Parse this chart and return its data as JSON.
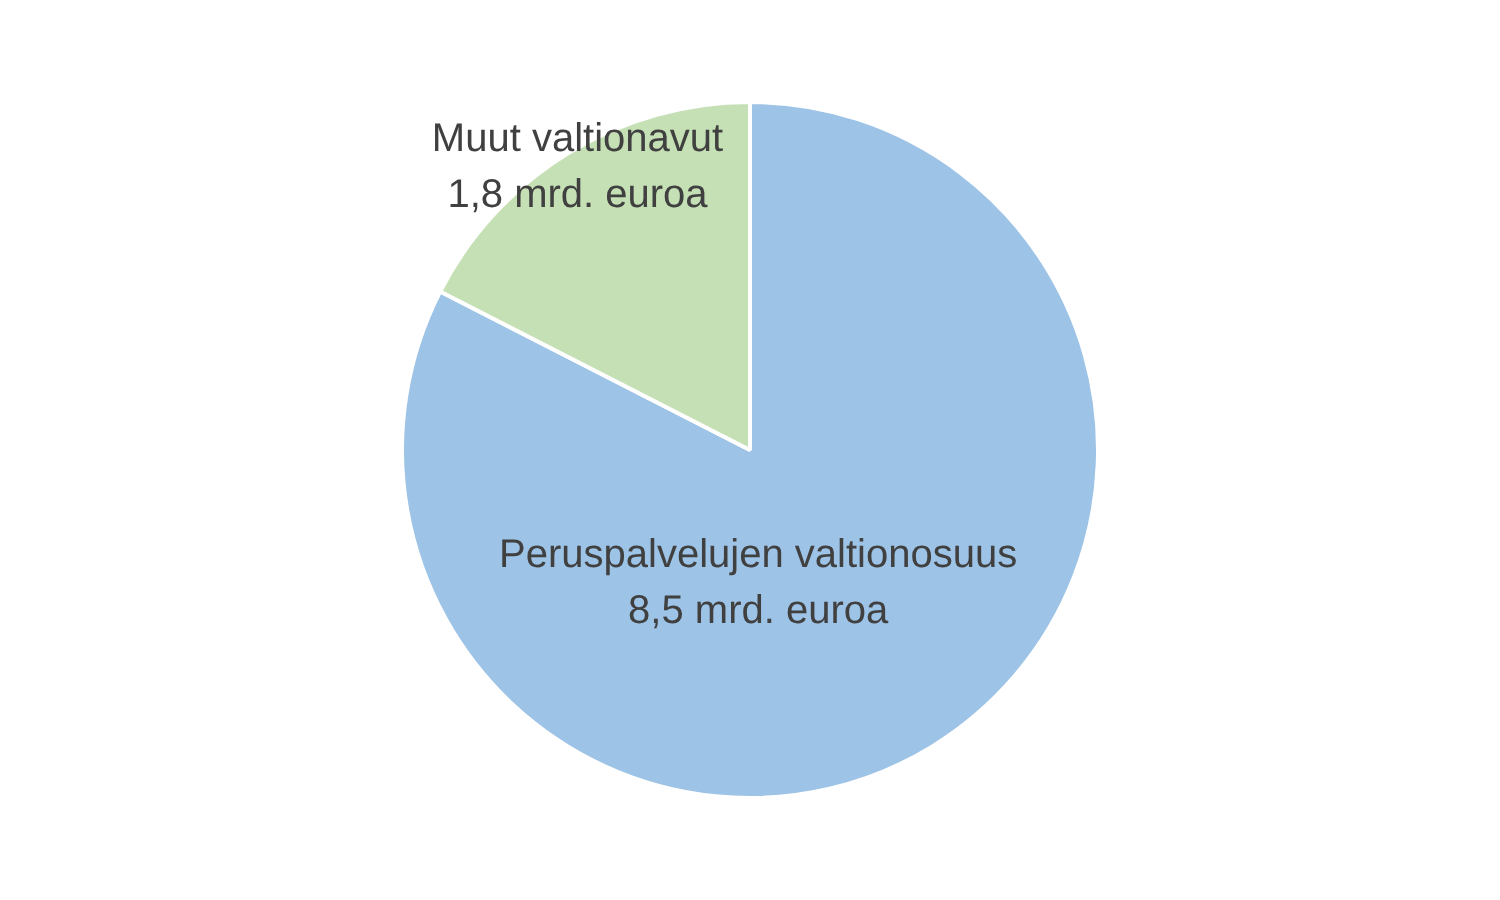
{
  "chart_data": {
    "type": "pie",
    "categories": [
      "Peruspalvelujen valtionosuus",
      "Muut valtionavut"
    ],
    "values": [
      8.5,
      1.8
    ],
    "value_labels": [
      "8,5 mrd. euroa",
      "1,8 mrd. euroa"
    ],
    "colors": [
      "#9dc3e6",
      "#c5e0b4"
    ],
    "legend": false
  }
}
